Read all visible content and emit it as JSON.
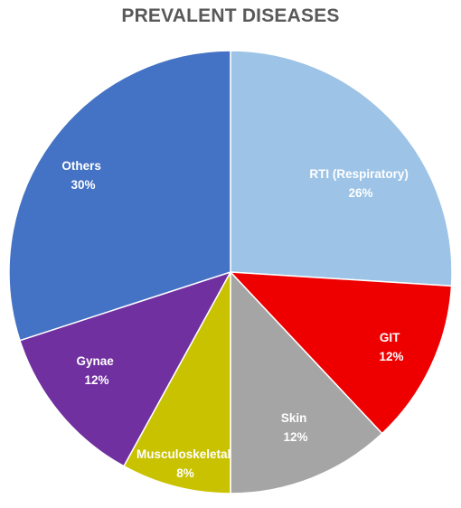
{
  "chart_data": {
    "type": "pie",
    "title": "PREVALENT DISEASES",
    "slices": [
      {
        "label": "RTI (Respiratory)",
        "value": 26,
        "display": "26%",
        "color": "#9dc3e6"
      },
      {
        "label": "GIT",
        "value": 12,
        "display": "12%",
        "color": "#ee0000"
      },
      {
        "label": "Skin",
        "value": 12,
        "display": "12%",
        "color": "#a5a5a5"
      },
      {
        "label": "Musculoskeletal",
        "value": 8,
        "display": "8%",
        "color": "#c9c200"
      },
      {
        "label": "Gynae",
        "value": 12,
        "display": "12%",
        "color": "#7030a0"
      },
      {
        "label": "Others",
        "value": 30,
        "display": "30%",
        "color": "#4472c4"
      }
    ],
    "start": "12 o'clock",
    "direction": "clockwise",
    "legend": "none",
    "data_labels": "inside"
  }
}
